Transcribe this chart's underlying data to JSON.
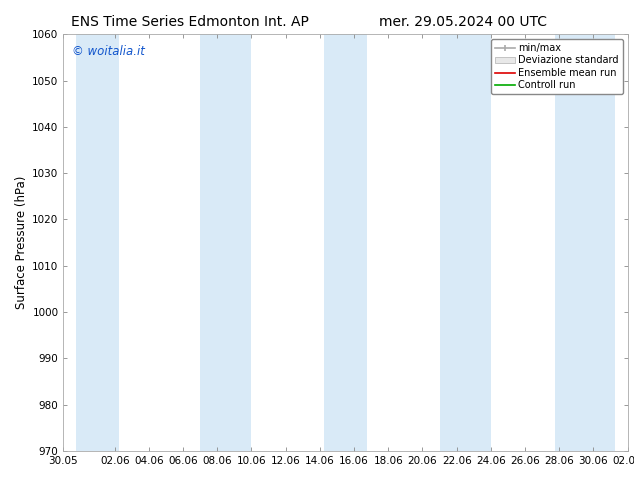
{
  "title_left": "ENS Time Series Edmonton Int. AP",
  "title_right": "mer. 29.05.2024 00 UTC",
  "ylabel": "Surface Pressure (hPa)",
  "ylim": [
    970,
    1060
  ],
  "yticks": [
    970,
    980,
    990,
    1000,
    1010,
    1020,
    1030,
    1040,
    1050,
    1060
  ],
  "xlim": [
    0,
    33
  ],
  "xtick_labels": [
    "30.05",
    "02.06",
    "04.06",
    "06.06",
    "08.06",
    "10.06",
    "12.06",
    "14.06",
    "16.06",
    "18.06",
    "20.06",
    "22.06",
    "24.06",
    "26.06",
    "28.06",
    "30.06",
    "02.07"
  ],
  "xtick_positions": [
    0,
    3,
    5,
    7,
    9,
    11,
    13,
    15,
    17,
    19,
    21,
    23,
    25,
    27,
    29,
    31,
    33
  ],
  "band_centers": [
    2.0,
    9.5,
    16.5,
    23.5,
    30.5
  ],
  "band_widths": [
    2.5,
    3.0,
    2.5,
    3.0,
    3.5
  ],
  "band_color": "#d9eaf7",
  "bg_color": "#ffffff",
  "watermark": "© woitalia.it",
  "watermark_color": "#1155cc",
  "legend_labels": [
    "min/max",
    "Deviazione standard",
    "Ensemble mean run",
    "Controll run"
  ],
  "legend_minmax_color": "#aaaaaa",
  "legend_dev_color": "#cccccc",
  "legend_ens_color": "#dd0000",
  "legend_ctrl_color": "#00aa00",
  "title_fontsize": 10,
  "tick_fontsize": 7.5,
  "ylabel_fontsize": 8.5,
  "legend_fontsize": 7,
  "watermark_fontsize": 8.5
}
